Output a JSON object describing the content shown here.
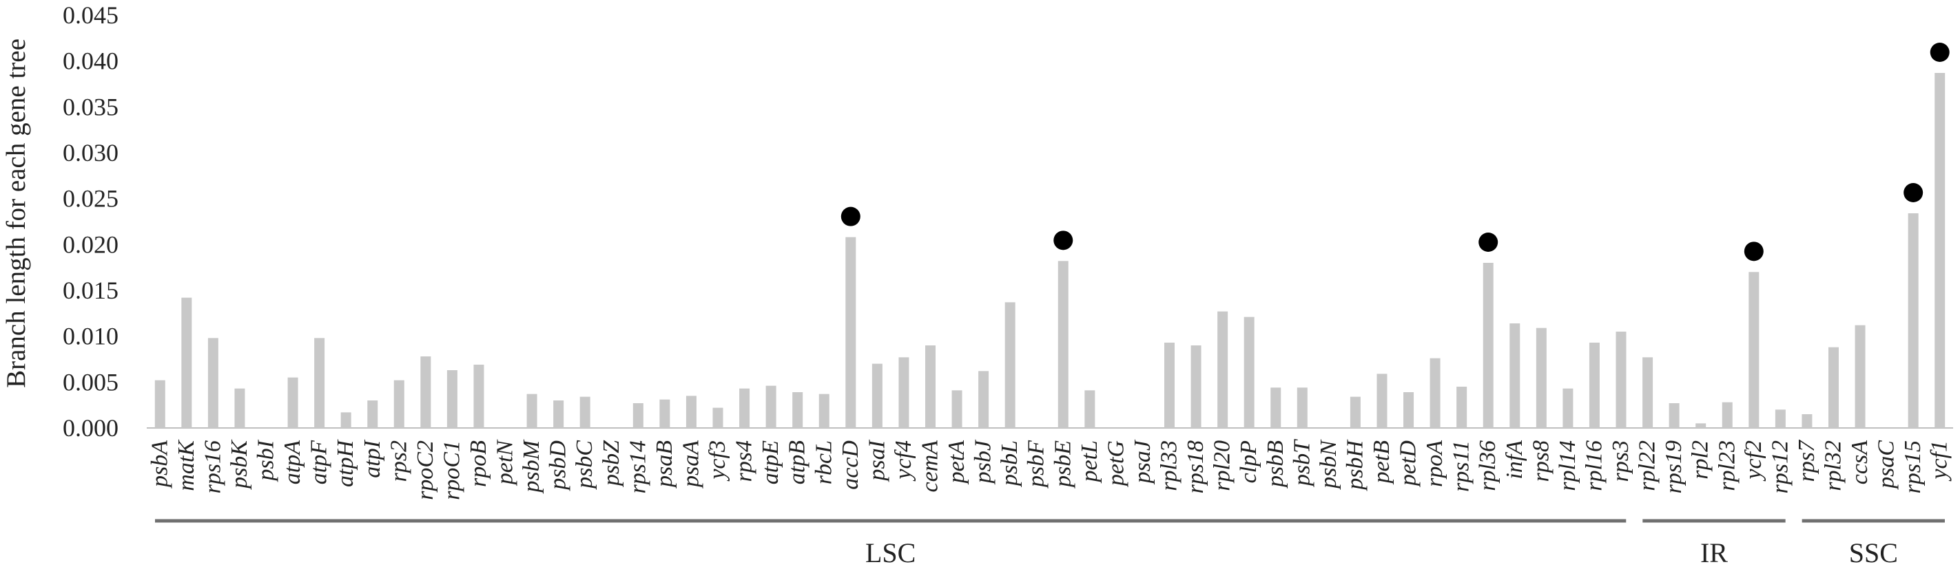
{
  "chart_data": {
    "type": "bar",
    "ylabel": "Branch length for each gene tree",
    "xlabel": "",
    "ylim": [
      0,
      0.045
    ],
    "yticks": [
      "0.000",
      "0.005",
      "0.010",
      "0.015",
      "0.020",
      "0.025",
      "0.030",
      "0.035",
      "0.040",
      "0.045"
    ],
    "bar_color": "#c8c8c8",
    "marker_color": "#000000",
    "categories": [
      "psbA",
      "matK",
      "rps16",
      "psbK",
      "psbI",
      "atpA",
      "atpF",
      "atpH",
      "atpI",
      "rps2",
      "rpoC2",
      "rpoC1",
      "rpoB",
      "petN",
      "psbM",
      "psbD",
      "psbC",
      "psbZ",
      "rps14",
      "psaB",
      "psaA",
      "ycf3",
      "rps4",
      "atpE",
      "atpB",
      "rbcL",
      "accD",
      "psaI",
      "ycf4",
      "cemA",
      "petA",
      "psbJ",
      "psbL",
      "psbF",
      "psbE",
      "petL",
      "petG",
      "psaJ",
      "rpl33",
      "rps18",
      "rpl20",
      "clpP",
      "psbB",
      "psbT",
      "psbN",
      "psbH",
      "petB",
      "petD",
      "rpoA",
      "rps11",
      "rpl36",
      "infA",
      "rps8",
      "rpl14",
      "rpl16",
      "rps3",
      "rpl22",
      "rps19",
      "rpl2",
      "rpl23",
      "ycf2",
      "rps12",
      "rps7",
      "rpl32",
      "ccsA",
      "psaC",
      "rps15",
      "ycf1"
    ],
    "values": [
      0.0052,
      0.0142,
      0.0098,
      0.0043,
      0,
      0.0055,
      0.0098,
      0.0017,
      0.003,
      0.0052,
      0.0078,
      0.0063,
      0.0069,
      0,
      0.0037,
      0.003,
      0.0034,
      0,
      0.0027,
      0.0031,
      0.0035,
      0.0022,
      0.0043,
      0.0046,
      0.0039,
      0.0037,
      0.0208,
      0.007,
      0.0077,
      0.009,
      0.0041,
      0.0062,
      0.0137,
      0,
      0.0182,
      0.0041,
      0,
      0,
      0.0093,
      0.009,
      0.0127,
      0.0121,
      0.0044,
      0.0044,
      0,
      0.0034,
      0.0059,
      0.0039,
      0.0076,
      0.0045,
      0.018,
      0.0114,
      0.0109,
      0.0043,
      0.0093,
      0.0105,
      0.0077,
      0.0027,
      0.0005,
      0.0028,
      0.017,
      0.002,
      0.0015,
      0.0088,
      0.0112,
      0,
      0.0234,
      0.0387
    ],
    "highlighted": [
      "accD",
      "psbE",
      "rpl36",
      "ycf2",
      "rps15",
      "ycf1"
    ],
    "regions": [
      {
        "label": "LSC",
        "start": "psbA",
        "end": "rps3"
      },
      {
        "label": "IR",
        "start": "rpl22",
        "end": "rps12"
      },
      {
        "label": "SSC",
        "start": "rps7",
        "end": "ycf1"
      }
    ]
  }
}
